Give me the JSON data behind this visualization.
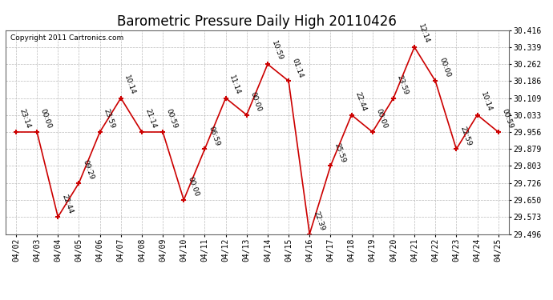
{
  "title": "Barometric Pressure Daily High 20110426",
  "copyright": "Copyright 2011 Cartronics.com",
  "dates": [
    "04/02",
    "04/03",
    "04/04",
    "04/05",
    "04/06",
    "04/07",
    "04/08",
    "04/09",
    "04/10",
    "04/11",
    "04/12",
    "04/13",
    "04/14",
    "04/15",
    "04/16",
    "04/17",
    "04/18",
    "04/19",
    "04/20",
    "04/21",
    "04/22",
    "04/23",
    "04/24",
    "04/25"
  ],
  "values": [
    29.956,
    29.956,
    29.573,
    29.726,
    29.956,
    30.109,
    29.956,
    29.956,
    29.65,
    29.879,
    30.109,
    30.033,
    30.262,
    30.186,
    29.496,
    29.803,
    30.033,
    29.956,
    30.109,
    30.339,
    30.186,
    29.879,
    30.033,
    29.956
  ],
  "annotations": [
    "23:14",
    "00:00",
    "22:44",
    "09:29",
    "23:59",
    "10:14",
    "21:14",
    "00:59",
    "00:00",
    "06:59",
    "11:14",
    "00:00",
    "10:59",
    "01:14",
    "22:39",
    "25:59",
    "22:44",
    "00:00",
    "23:59",
    "12:14",
    "00:00",
    "22:59",
    "10:14",
    "00:59"
  ],
  "line_color": "#cc0000",
  "marker_color": "#cc0000",
  "bg_color": "#ffffff",
  "plot_bg_color": "#ffffff",
  "grid_color": "#bbbbbb",
  "ylim": [
    29.496,
    30.416
  ],
  "yticks": [
    29.496,
    29.573,
    29.65,
    29.726,
    29.803,
    29.879,
    29.956,
    30.033,
    30.109,
    30.186,
    30.262,
    30.339,
    30.416
  ],
  "title_fontsize": 12,
  "annotation_fontsize": 6.5,
  "copyright_fontsize": 6.5
}
